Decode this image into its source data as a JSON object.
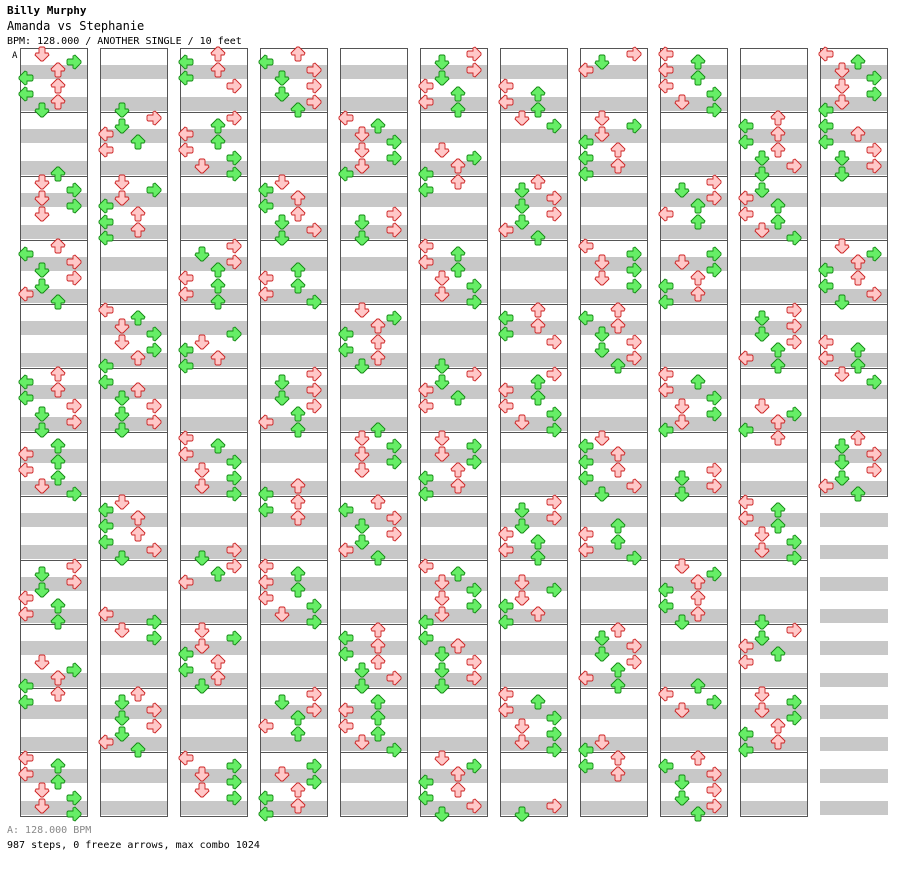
{
  "header": {
    "artist": "Billy Murphy",
    "title": "Amanda vs Stephanie",
    "info": "BPM: 128.000 / ANOTHER SINGLE / 10 feet"
  },
  "bpm_marker": "A",
  "footer": {
    "bpm_text": "A: 128.000 BPM",
    "stats_text": "987 steps, 0 freeze arrows, max combo 1024"
  },
  "colors": {
    "stripe": "#c8c8c8",
    "column_border": "#555555",
    "quarter_note_fill": "#ffc8c8",
    "quarter_note_stroke": "#cc2222",
    "eighth_note_fill": "#66ee66",
    "eighth_note_stroke": "#118811"
  },
  "icons": {
    "left": "arrow-left-icon",
    "down": "arrow-down-icon",
    "up": "arrow-up-icon",
    "right": "arrow-right-icon"
  },
  "chart_data": {
    "type": "step-chart",
    "columns": 11,
    "measures_per_column": 12,
    "lanes": [
      "left",
      "down",
      "up",
      "right"
    ],
    "total_measures": 127,
    "bpm": 128.0,
    "steps": 987,
    "freeze_arrows": 0,
    "max_combo": 1024
  }
}
